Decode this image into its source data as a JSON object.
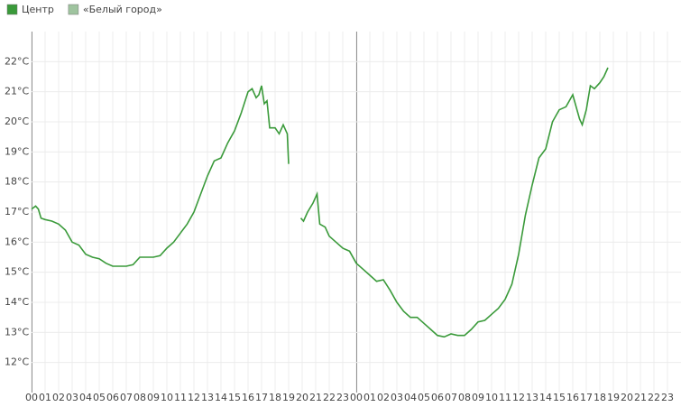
{
  "chart_data": {
    "type": "line",
    "x": [
      0,
      0.3,
      0.5,
      0.7,
      1,
      1.5,
      2,
      2.5,
      3,
      3.5,
      4,
      4.5,
      5,
      5.5,
      6,
      6.5,
      7,
      7.5,
      8,
      8.5,
      9,
      9.5,
      10,
      10.5,
      11,
      11.5,
      12,
      12.5,
      13,
      13.5,
      14,
      14.5,
      15,
      15.5,
      16,
      16.3,
      16.6,
      16.8,
      17,
      17.2,
      17.4,
      17.6,
      18,
      18.3,
      18.6,
      18.9,
      19,
      19.4,
      19.9,
      20.1,
      20.4,
      20.8,
      21.1,
      21.3,
      21.7,
      22,
      22.5,
      23,
      23.5,
      24,
      24.5,
      25,
      25.5,
      26,
      26.5,
      27,
      27.5,
      28,
      28.5,
      29,
      29.5,
      30,
      30.5,
      31,
      31.5,
      32,
      32.5,
      33,
      33.5,
      34,
      34.5,
      35,
      35.5,
      36,
      36.5,
      37,
      37.5,
      38,
      38.5,
      39,
      39.5,
      40,
      40.5,
      40.7,
      41,
      41.3,
      41.6,
      42,
      42.3,
      42.6
    ],
    "series": [
      {
        "name": "Центр",
        "color": "#3a9a3a",
        "values": [
          17.1,
          17.2,
          17.1,
          16.8,
          16.75,
          16.7,
          16.6,
          16.4,
          16.0,
          15.9,
          15.6,
          15.5,
          15.45,
          15.3,
          15.2,
          15.2,
          15.2,
          15.25,
          15.5,
          15.5,
          15.5,
          15.55,
          15.8,
          16.0,
          16.3,
          16.6,
          17.0,
          17.6,
          18.2,
          18.7,
          18.8,
          19.3,
          19.7,
          20.3,
          21.0,
          21.1,
          20.8,
          20.9,
          21.2,
          20.6,
          20.7,
          19.8,
          19.8,
          19.6,
          19.9,
          19.6,
          18.6,
          null,
          16.8,
          16.7,
          17.0,
          17.3,
          17.6,
          16.6,
          16.5,
          16.2,
          16.0,
          15.8,
          15.7,
          15.3,
          15.1,
          14.9,
          14.7,
          14.75,
          14.4,
          14.0,
          13.7,
          13.5,
          13.5,
          13.3,
          13.1,
          12.9,
          12.85,
          12.95,
          12.9,
          12.9,
          13.1,
          13.35,
          13.4,
          13.6,
          13.8,
          14.1,
          14.6,
          15.6,
          16.9,
          17.9,
          18.8,
          19.1,
          20.0,
          20.4,
          20.5,
          20.9,
          20.1,
          19.9,
          20.4,
          21.2,
          21.1,
          21.3,
          21.5,
          21.8
        ]
      },
      {
        "name": "«Белый город»",
        "color": "#9fc49f",
        "values": [
          null,
          null,
          null,
          null,
          null,
          null,
          null,
          null,
          null,
          null,
          null,
          null,
          null,
          null,
          null,
          null,
          null,
          null,
          null,
          null,
          null,
          null,
          null,
          null,
          null,
          null,
          null,
          null,
          null,
          null,
          null,
          null,
          null,
          null,
          null,
          null,
          null,
          null,
          null,
          null,
          null,
          null,
          null,
          null,
          null,
          null,
          null,
          null,
          null,
          null,
          null,
          null,
          null,
          null,
          null,
          null,
          null,
          null,
          null,
          null,
          null,
          null,
          null,
          null,
          null,
          null,
          null,
          null,
          null,
          null,
          null,
          null,
          null,
          null,
          null,
          null,
          null,
          null,
          null,
          null,
          null,
          null,
          null,
          null,
          null,
          null,
          null,
          null,
          null,
          null,
          null,
          null,
          null,
          null,
          null,
          null,
          null,
          null,
          null,
          null
        ]
      }
    ],
    "xlim": [
      0,
      47
    ],
    "xticks": [
      {
        "value": 0,
        "label": "00"
      },
      {
        "value": 1,
        "label": "01"
      },
      {
        "value": 2,
        "label": "02"
      },
      {
        "value": 3,
        "label": "03"
      },
      {
        "value": 4,
        "label": "04"
      },
      {
        "value": 5,
        "label": "05"
      },
      {
        "value": 6,
        "label": "06"
      },
      {
        "value": 7,
        "label": "07"
      },
      {
        "value": 8,
        "label": "08"
      },
      {
        "value": 9,
        "label": "09"
      },
      {
        "value": 10,
        "label": "10"
      },
      {
        "value": 11,
        "label": "11"
      },
      {
        "value": 12,
        "label": "12"
      },
      {
        "value": 13,
        "label": "13"
      },
      {
        "value": 14,
        "label": "14"
      },
      {
        "value": 15,
        "label": "15"
      },
      {
        "value": 16,
        "label": "16"
      },
      {
        "value": 17,
        "label": "17"
      },
      {
        "value": 18,
        "label": "18"
      },
      {
        "value": 19,
        "label": "19"
      },
      {
        "value": 20,
        "label": "20"
      },
      {
        "value": 21,
        "label": "21"
      },
      {
        "value": 22,
        "label": "22"
      },
      {
        "value": 23,
        "label": "23"
      },
      {
        "value": 24,
        "label": "00"
      },
      {
        "value": 25,
        "label": "01"
      },
      {
        "value": 26,
        "label": "02"
      },
      {
        "value": 27,
        "label": "03"
      },
      {
        "value": 28,
        "label": "04"
      },
      {
        "value": 29,
        "label": "05"
      },
      {
        "value": 30,
        "label": "06"
      },
      {
        "value": 31,
        "label": "07"
      },
      {
        "value": 32,
        "label": "08"
      },
      {
        "value": 33,
        "label": "09"
      },
      {
        "value": 34,
        "label": "10"
      },
      {
        "value": 35,
        "label": "11"
      },
      {
        "value": 36,
        "label": "12"
      },
      {
        "value": 37,
        "label": "13"
      },
      {
        "value": 38,
        "label": "14"
      },
      {
        "value": 39,
        "label": "15"
      },
      {
        "value": 40,
        "label": "16"
      },
      {
        "value": 41,
        "label": "17"
      },
      {
        "value": 42,
        "label": "18"
      },
      {
        "value": 43,
        "label": "19"
      },
      {
        "value": 44,
        "label": "20"
      },
      {
        "value": 45,
        "label": "21"
      },
      {
        "value": 46,
        "label": "22"
      },
      {
        "value": 47,
        "label": "23"
      }
    ],
    "ylim": [
      11,
      23
    ],
    "yticks": [
      {
        "value": 12,
        "label": "12°C"
      },
      {
        "value": 13,
        "label": "13°C"
      },
      {
        "value": 14,
        "label": "14°C"
      },
      {
        "value": 15,
        "label": "15°C"
      },
      {
        "value": 16,
        "label": "16°C"
      },
      {
        "value": 17,
        "label": "17°C"
      },
      {
        "value": 18,
        "label": "18°C"
      },
      {
        "value": 19,
        "label": "19°C"
      },
      {
        "value": 20,
        "label": "20°C"
      },
      {
        "value": 21,
        "label": "21°C"
      },
      {
        "value": 22,
        "label": "22°C"
      }
    ],
    "grid": true
  }
}
